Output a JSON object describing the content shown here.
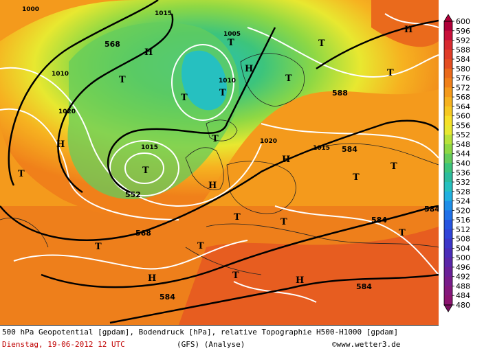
{
  "map": {
    "pressure_labels": [
      "1000",
      "1015",
      "1005",
      "1010",
      "1020",
      "1015",
      "1010",
      "1015",
      "1020"
    ],
    "geo_labels": [
      "568",
      "552",
      "584",
      "584",
      "584",
      "584",
      "568",
      "588",
      "584"
    ],
    "centers": [
      "T",
      "H"
    ]
  },
  "legend": {
    "values": [
      "600",
      "596",
      "592",
      "588",
      "584",
      "580",
      "576",
      "572",
      "568",
      "564",
      "560",
      "556",
      "552",
      "548",
      "544",
      "540",
      "536",
      "532",
      "528",
      "524",
      "520",
      "516",
      "512",
      "508",
      "504",
      "500",
      "496",
      "492",
      "488",
      "484",
      "480"
    ],
    "colors": [
      "#b0003a",
      "#c8103a",
      "#d82a30",
      "#e03c28",
      "#e44e22",
      "#ea6a1c",
      "#f0801a",
      "#f49a1c",
      "#f6b220",
      "#f6c822",
      "#f6e028",
      "#e8e830",
      "#b8e23a",
      "#8ed844",
      "#64cc5c",
      "#3cc47c",
      "#2cbc9e",
      "#26c0c0",
      "#20b0e0",
      "#1e8ee8",
      "#2070e8",
      "#2654e0",
      "#3044d8",
      "#3c36c8",
      "#4a2cb8",
      "#5a26a8",
      "#6a2098",
      "#781c8a",
      "#84187c",
      "#8c1470",
      "#7a1060"
    ]
  },
  "footer": {
    "title": "500 hPa Geopotential [gpdam], Bodendruck [hPa], relative Topographie H500-H1000 [gpdam]",
    "date": "Dienstag, 19-06-2012  12 UTC",
    "model": "(GFS)  (Analyse)",
    "credit": "©www.wetter3.de"
  }
}
